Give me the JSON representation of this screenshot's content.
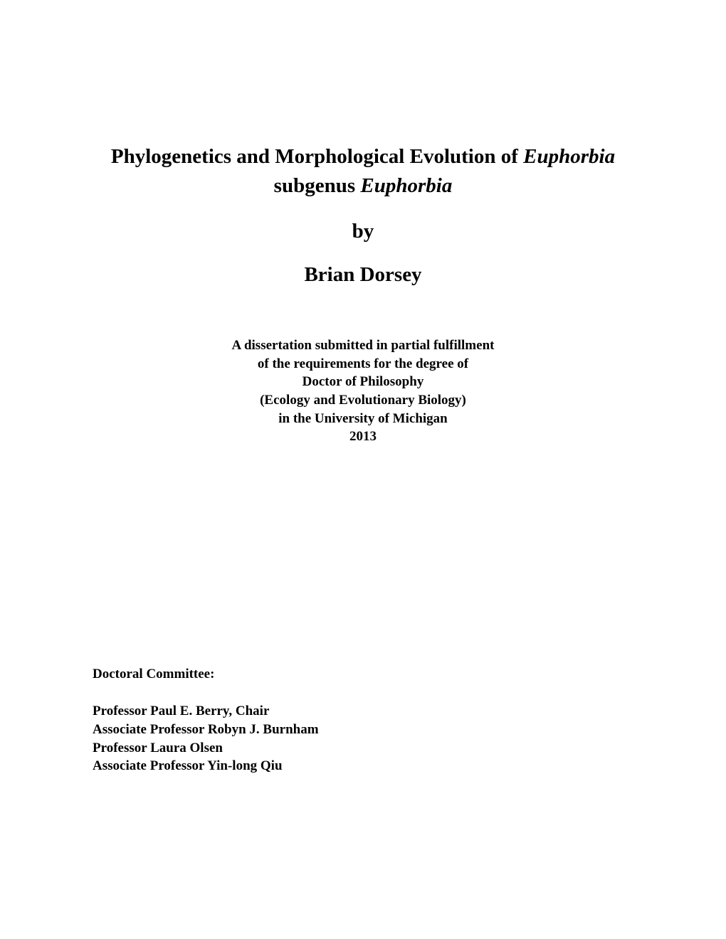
{
  "title": {
    "line1_pre": "Phylogenetics and Morphological Evolution of ",
    "line1_italic": "Euphorbia",
    "line2_pre": "subgenus ",
    "line2_italic": "Euphorbia"
  },
  "by": "by",
  "author": "Brian Dorsey",
  "subtitle": {
    "line1": "A dissertation submitted in partial fulfillment",
    "line2": "of the requirements for the degree of",
    "line3": "Doctor of Philosophy",
    "line4": "(Ecology and Evolutionary Biology)",
    "line5": "in the University of Michigan",
    "line6": "2013"
  },
  "committee": {
    "heading": "Doctoral Committee:",
    "members": [
      "Professor Paul E. Berry, Chair",
      "Associate Professor Robyn J. Burnham",
      "Professor Laura Olsen",
      "Associate Professor Yin-long Qiu"
    ]
  },
  "style": {
    "background_color": "#ffffff",
    "text_color": "#000000",
    "title_fontsize": 29,
    "subtitle_fontsize": 19,
    "committee_fontsize": 19,
    "font_family": "Times New Roman"
  }
}
